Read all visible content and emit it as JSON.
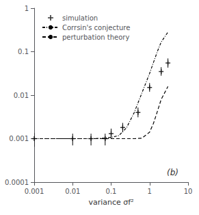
{
  "chart_data": {
    "type": "line",
    "xlabel": "variance σf²",
    "annotation": "(b)",
    "log": true,
    "grid": false,
    "legend": "upper left",
    "xlim": [
      0.001,
      10
    ],
    "ylim": [
      0.0001,
      1
    ],
    "xticks": [
      0.001,
      0.01,
      0.1,
      1,
      10
    ],
    "yticks": [
      0.0001,
      0.001,
      0.01,
      0.1,
      1
    ],
    "series": [
      {
        "name": "simulation",
        "type": "scatter",
        "marker": "plus",
        "color": "#000000",
        "x": [
          0.001,
          0.01,
          0.03,
          0.07,
          0.1,
          0.2,
          0.5,
          1.0,
          2.0,
          3.0
        ],
        "values": [
          0.001,
          0.001,
          0.001,
          0.001,
          0.0013,
          0.0018,
          0.004,
          0.015,
          0.035,
          0.055
        ],
        "error_lo": [
          0.00035,
          0.0003,
          0.0003,
          0.0003,
          0.0003,
          0.0004,
          0.0009,
          0.003,
          0.007,
          0.012
        ],
        "error_hi": [
          0.00035,
          0.0003,
          0.0003,
          0.0003,
          0.0004,
          0.0005,
          0.0012,
          0.004,
          0.009,
          0.015
        ]
      },
      {
        "name": "Corrsin's conjecture",
        "type": "line",
        "line_style": "dashdot",
        "color": "#000000",
        "x": [
          0.001,
          0.0031622776601683794,
          0.01,
          0.03162277660168379,
          0.06309573444801933,
          0.1,
          0.15848931924611134,
          0.25118864315095796,
          0.3981071705534972,
          0.6309573444801932,
          1,
          1.2589254117941673,
          1.5848931924611136,
          1.9952623149688795,
          2.9991625
        ],
        "values": [
          0.001,
          0.001,
          0.001,
          0.001,
          0.0010232929923,
          0.0010715193052,
          0.0011748975549,
          0.00177827941,
          0.003981071706,
          0.011220184543,
          0.0316227766,
          0.05623413252,
          0.1,
          0.16595869074,
          0.28183829313
        ]
      },
      {
        "name": "perturbation theory",
        "type": "line",
        "line_style": "dashed",
        "color": "#000000",
        "x": [
          0.001,
          0.0031622776601683794,
          0.01,
          0.03162277660168379,
          0.06309573444801933,
          0.1,
          0.15848931924611134,
          0.25118864315095796,
          0.3981071705534972,
          0.6309573444801932,
          1,
          1.2589254117941673,
          1.5848931924611136,
          1.9952623149688795,
          2.9991625
        ],
        "values": [
          0.001,
          0.001,
          0.001,
          0.001,
          0.001,
          0.001,
          0.001,
          0.001,
          0.001,
          0.0010232929923,
          0.0014125375446,
          0.0022387211386,
          0.0041686938347,
          0.007943282347,
          0.015848931925
        ]
      }
    ]
  }
}
